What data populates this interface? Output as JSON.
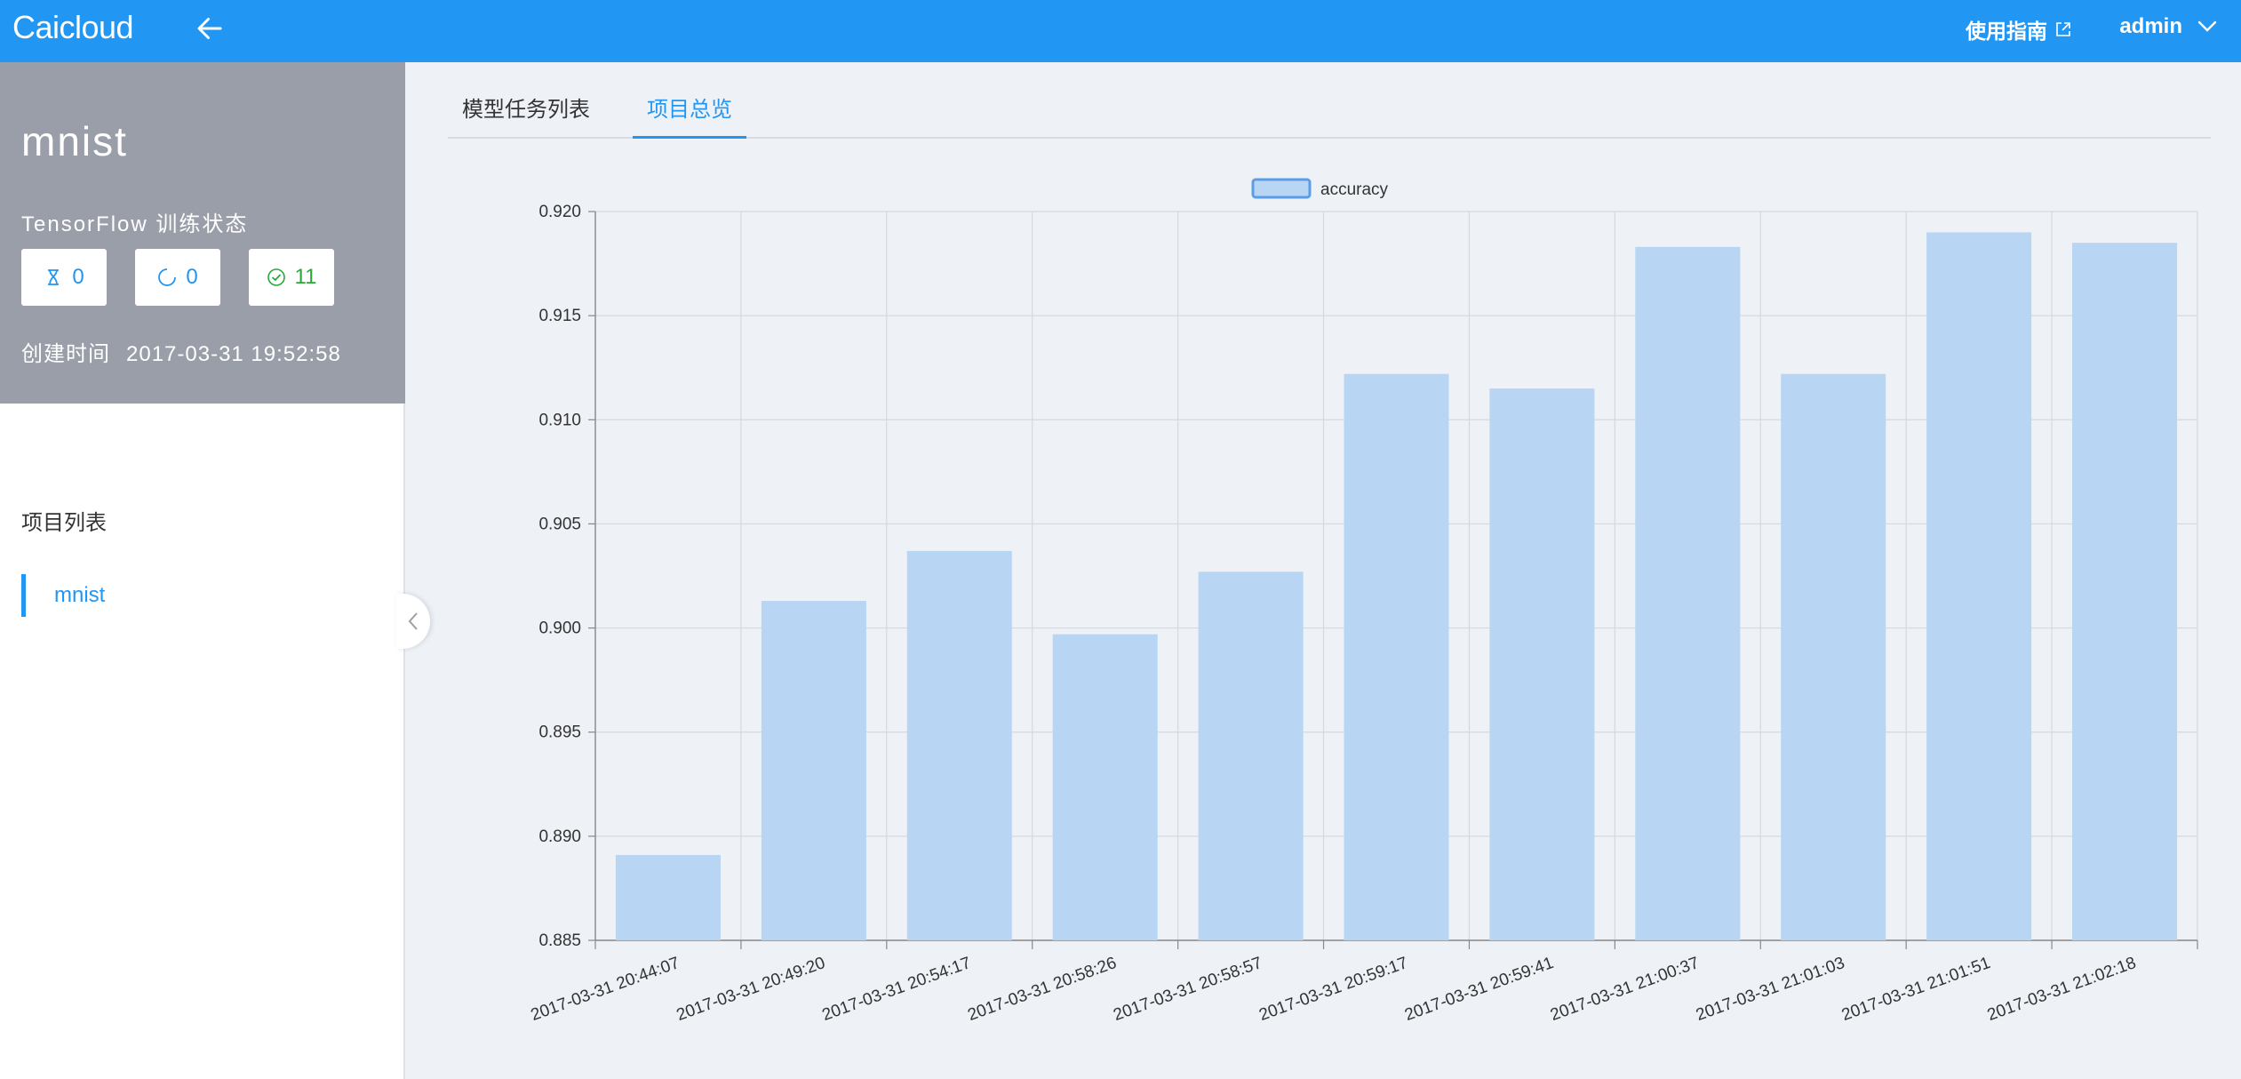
{
  "header": {
    "logo": "Caicloud",
    "guide_label": "使用指南",
    "user_label": "admin"
  },
  "sidebar": {
    "project_name": "mnist",
    "training_label": "TensorFlow 训练状态",
    "stats": {
      "pending": "0",
      "running": "0",
      "completed": "11"
    },
    "created_label": "创建时间",
    "created_value": "2017-03-31 19:52:58",
    "list_title": "项目列表",
    "items": [
      {
        "label": "mnist"
      }
    ]
  },
  "tabs": [
    {
      "label": "模型任务列表"
    },
    {
      "label": "项目总览"
    }
  ],
  "colors": {
    "primary": "#2196f3",
    "bar_fill": "#b8d5f3",
    "success": "#2aa83a",
    "sidebar_head": "#9a9ea8"
  },
  "chart_data": {
    "type": "bar",
    "legend": [
      "accuracy"
    ],
    "categories": [
      "2017-03-31 20:44:07",
      "2017-03-31 20:49:20",
      "2017-03-31 20:54:17",
      "2017-03-31 20:58:26",
      "2017-03-31 20:58:57",
      "2017-03-31 20:59:17",
      "2017-03-31 20:59:41",
      "2017-03-31 21:00:37",
      "2017-03-31 21:01:03",
      "2017-03-31 21:01:51",
      "2017-03-31 21:02:18"
    ],
    "series": [
      {
        "name": "accuracy",
        "values": [
          0.8891,
          0.9013,
          0.9037,
          0.8997,
          0.9027,
          0.9122,
          0.9115,
          0.9183,
          0.9122,
          0.919,
          0.9185
        ]
      }
    ],
    "ylim": [
      0.885,
      0.92
    ],
    "yticks": [
      "0.920",
      "0.915",
      "0.910",
      "0.905",
      "0.900",
      "0.895",
      "0.890",
      "0.885"
    ],
    "grid": true,
    "legend_position": "top-center"
  }
}
